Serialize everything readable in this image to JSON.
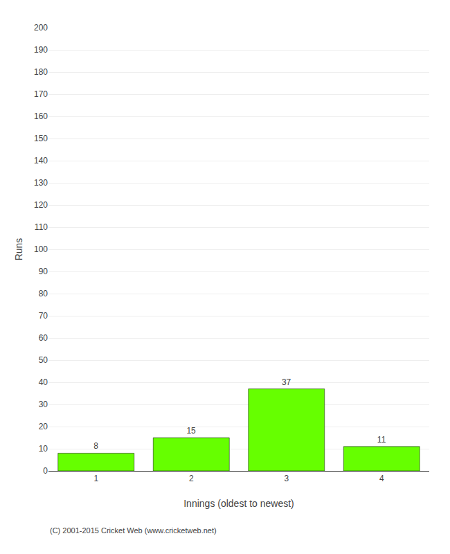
{
  "chart_data": {
    "type": "bar",
    "categories": [
      "1",
      "2",
      "3",
      "4"
    ],
    "values": [
      8,
      15,
      37,
      11
    ],
    "color": "#66ff00",
    "xlabel": "Innings (oldest to newest)",
    "ylabel": "Runs",
    "ylim": [
      0,
      200
    ],
    "yticks": [
      0,
      10,
      20,
      30,
      40,
      50,
      60,
      70,
      80,
      90,
      100,
      110,
      120,
      130,
      140,
      150,
      160,
      170,
      180,
      190,
      200
    ],
    "grid": true,
    "data_labels": true,
    "annotations": [
      "(C) 2001-2015 Cricket Web (www.cricketweb.net)"
    ]
  }
}
